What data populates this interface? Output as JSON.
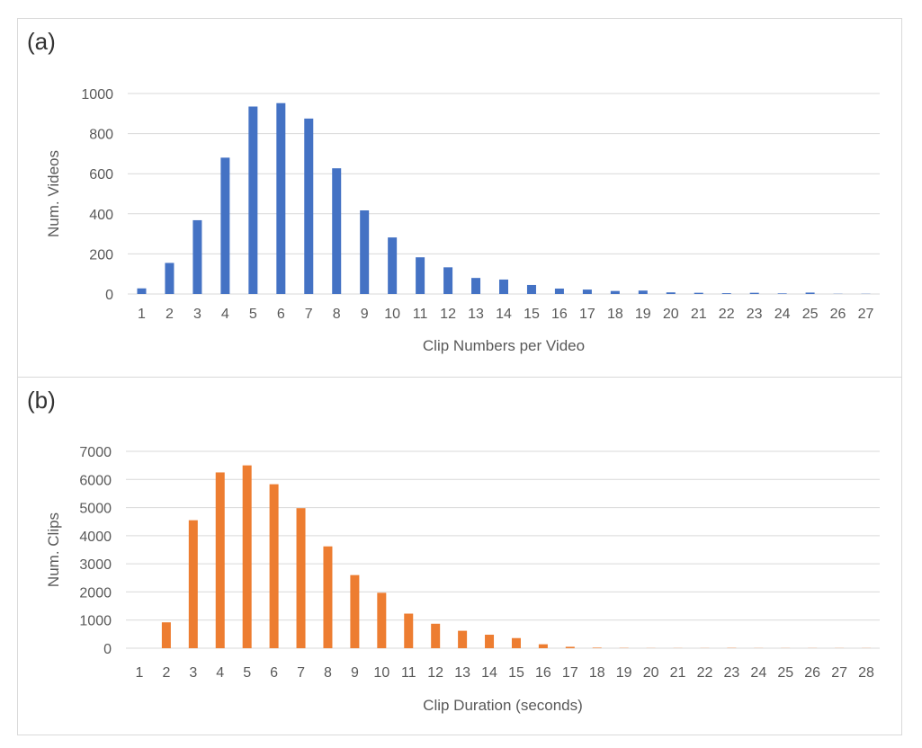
{
  "chart_data": [
    {
      "type": "bar",
      "panel_label": "(a)",
      "xlabel": "Clip Numbers per Video",
      "ylabel": "Num.  Videos",
      "ylim": [
        0,
        1000
      ],
      "yticks": [
        0,
        200,
        400,
        600,
        800,
        1000
      ],
      "grid": true,
      "color": "#4472c4",
      "categories": [
        "1",
        "2",
        "3",
        "4",
        "5",
        "6",
        "7",
        "8",
        "9",
        "10",
        "11",
        "12",
        "13",
        "14",
        "15",
        "16",
        "17",
        "18",
        "19",
        "20",
        "21",
        "22",
        "23",
        "24",
        "25",
        "26",
        "27"
      ],
      "values": [
        28,
        155,
        368,
        680,
        935,
        952,
        875,
        627,
        417,
        282,
        183,
        133,
        80,
        72,
        45,
        27,
        22,
        15,
        17,
        8,
        6,
        4,
        6,
        3,
        7,
        1,
        1
      ]
    },
    {
      "type": "bar",
      "panel_label": "(b)",
      "xlabel": "Clip Duration (seconds)",
      "ylabel": "Num. Clips",
      "ylim": [
        0,
        7000
      ],
      "yticks": [
        0,
        1000,
        2000,
        3000,
        4000,
        5000,
        6000,
        7000
      ],
      "grid": true,
      "color": "#ed7d31",
      "categories": [
        "1",
        "2",
        "3",
        "4",
        "5",
        "6",
        "7",
        "8",
        "9",
        "10",
        "11",
        "12",
        "13",
        "14",
        "15",
        "16",
        "17",
        "18",
        "19",
        "20",
        "21",
        "22",
        "23",
        "24",
        "25",
        "26",
        "27",
        "28"
      ],
      "values": [
        0,
        920,
        4550,
        6250,
        6500,
        5830,
        4980,
        3620,
        2600,
        1970,
        1230,
        870,
        620,
        480,
        360,
        140,
        50,
        20,
        10,
        5,
        5,
        5,
        10,
        5,
        5,
        5,
        5,
        5
      ]
    }
  ]
}
